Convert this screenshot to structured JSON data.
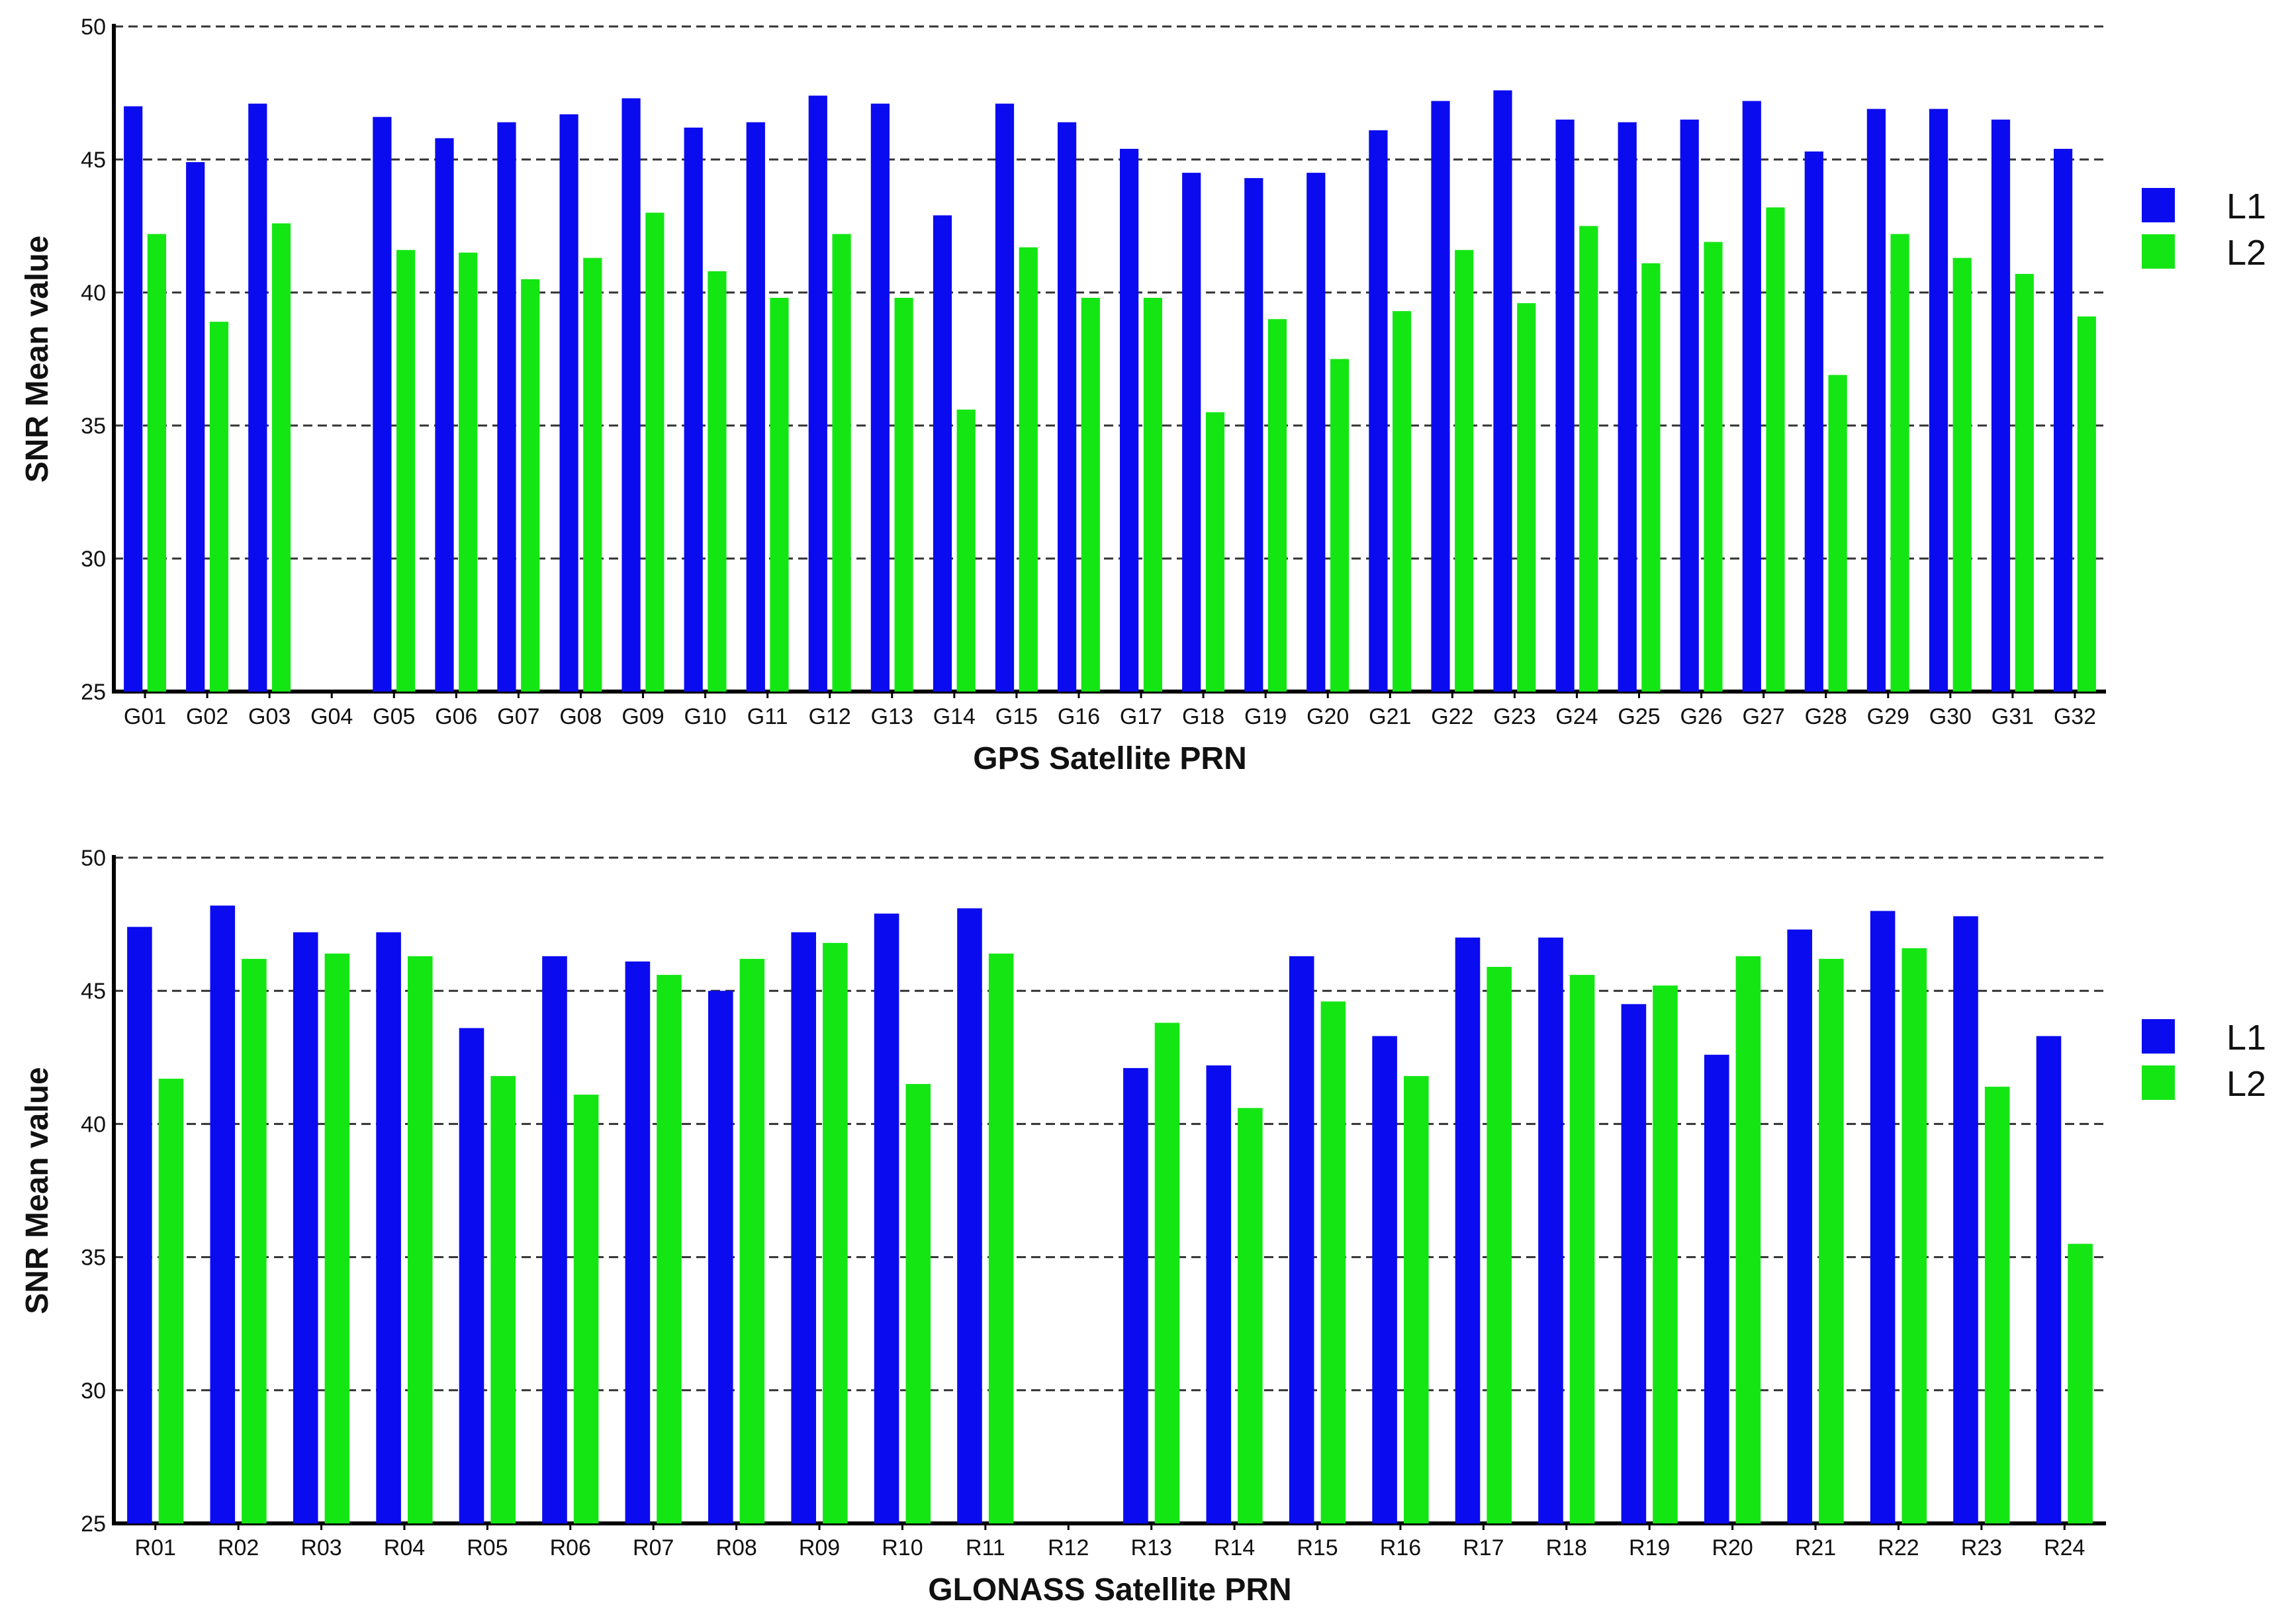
{
  "chart_data": [
    {
      "type": "bar",
      "xlabel": "GPS Satellite PRN",
      "ylabel": "SNR Mean value",
      "ylim": [
        25,
        50
      ],
      "yticks": [
        25,
        30,
        35,
        40,
        45,
        50
      ],
      "grid": true,
      "legend_position": "right",
      "categories": [
        "G01",
        "G02",
        "G03",
        "G04",
        "G05",
        "G06",
        "G07",
        "G08",
        "G09",
        "G10",
        "G11",
        "G12",
        "G13",
        "G14",
        "G15",
        "G16",
        "G17",
        "G18",
        "G19",
        "G20",
        "G21",
        "G22",
        "G23",
        "G24",
        "G25",
        "G26",
        "G27",
        "G28",
        "G29",
        "G30",
        "G31",
        "G32"
      ],
      "series": [
        {
          "name": "L1",
          "color": "#0b0bf0",
          "values": [
            47.0,
            44.9,
            47.1,
            null,
            46.6,
            45.8,
            46.4,
            46.7,
            47.3,
            46.2,
            46.4,
            47.4,
            47.1,
            42.9,
            47.1,
            46.4,
            45.4,
            44.5,
            44.3,
            44.5,
            46.1,
            47.2,
            47.6,
            46.5,
            46.4,
            46.5,
            47.2,
            45.3,
            46.9,
            46.9,
            46.5,
            45.4
          ]
        },
        {
          "name": "L2",
          "color": "#14e614",
          "values": [
            42.2,
            38.9,
            42.6,
            null,
            41.6,
            41.5,
            40.5,
            41.3,
            43.0,
            40.8,
            39.8,
            42.2,
            39.8,
            35.6,
            41.7,
            39.8,
            39.8,
            35.5,
            39.0,
            37.5,
            39.3,
            41.6,
            39.6,
            42.5,
            41.1,
            41.9,
            43.2,
            36.9,
            42.2,
            41.3,
            40.7,
            39.1
          ]
        }
      ]
    },
    {
      "type": "bar",
      "xlabel": "GLONASS Satellite PRN",
      "ylabel": "SNR Mean value",
      "ylim": [
        25,
        50
      ],
      "yticks": [
        25,
        30,
        35,
        40,
        45,
        50
      ],
      "grid": true,
      "legend_position": "right",
      "categories": [
        "R01",
        "R02",
        "R03",
        "R04",
        "R05",
        "R06",
        "R07",
        "R08",
        "R09",
        "R10",
        "R11",
        "R12",
        "R13",
        "R14",
        "R15",
        "R16",
        "R17",
        "R18",
        "R19",
        "R20",
        "R21",
        "R22",
        "R23",
        "R24"
      ],
      "series": [
        {
          "name": "L1",
          "color": "#0b0bf0",
          "values": [
            47.4,
            48.2,
            47.2,
            47.2,
            43.6,
            46.3,
            46.1,
            45.0,
            47.2,
            47.9,
            48.1,
            null,
            42.1,
            42.2,
            46.3,
            43.3,
            47.0,
            47.0,
            44.5,
            42.6,
            47.3,
            48.0,
            47.8,
            43.3
          ]
        },
        {
          "name": "L2",
          "color": "#14e614",
          "values": [
            41.7,
            46.2,
            46.4,
            46.3,
            41.8,
            41.1,
            45.6,
            46.2,
            46.8,
            41.5,
            46.4,
            null,
            43.8,
            40.6,
            44.6,
            41.8,
            45.9,
            45.6,
            45.2,
            46.3,
            46.2,
            46.6,
            41.4,
            35.5
          ]
        }
      ]
    }
  ]
}
